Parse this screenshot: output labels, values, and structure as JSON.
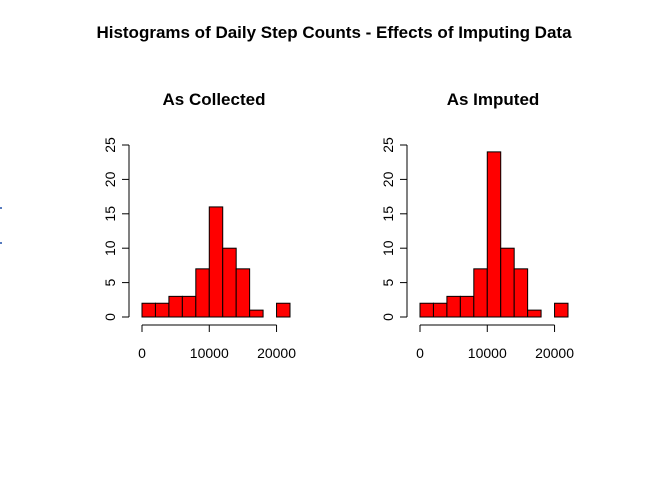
{
  "figure_title": "Histograms of Daily Step Counts - Effects of Imputing Data",
  "chart_data": [
    {
      "type": "bar",
      "title": "As Collected",
      "bin_edges": [
        0,
        2000,
        4000,
        6000,
        8000,
        10000,
        12000,
        14000,
        16000,
        18000,
        20000,
        22000
      ],
      "values": [
        2,
        2,
        3,
        3,
        7,
        16,
        10,
        7,
        1,
        0,
        2
      ],
      "xticks": [
        0,
        10000,
        20000
      ],
      "yticks": [
        0,
        5,
        10,
        15,
        20,
        25
      ],
      "xlim": [
        0,
        22000
      ],
      "ylim": [
        0,
        25
      ],
      "bar_color": "#ff0000",
      "xlabel": "",
      "ylabel": ""
    },
    {
      "type": "bar",
      "title": "As Imputed",
      "bin_edges": [
        0,
        2000,
        4000,
        6000,
        8000,
        10000,
        12000,
        14000,
        16000,
        18000,
        20000,
        22000
      ],
      "values": [
        2,
        2,
        3,
        3,
        7,
        24,
        10,
        7,
        1,
        0,
        2
      ],
      "xticks": [
        0,
        10000,
        20000
      ],
      "yticks": [
        0,
        5,
        10,
        15,
        20,
        25
      ],
      "xlim": [
        0,
        22000
      ],
      "ylim": [
        0,
        25
      ],
      "bar_color": "#ff0000",
      "xlabel": "",
      "ylabel": ""
    }
  ]
}
